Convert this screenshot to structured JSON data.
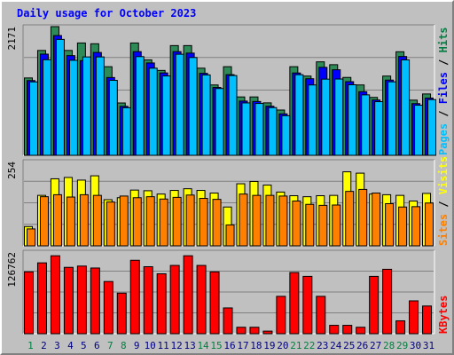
{
  "chart_data": {
    "type": "bar",
    "title": "Daily usage for October 2023",
    "categories": [
      "1",
      "2",
      "3",
      "4",
      "5",
      "6",
      "7",
      "8",
      "9",
      "10",
      "11",
      "12",
      "13",
      "14",
      "15",
      "16",
      "17",
      "18",
      "19",
      "20",
      "21",
      "22",
      "23",
      "24",
      "25",
      "26",
      "27",
      "28",
      "29",
      "30",
      "31"
    ],
    "weekend_days": [
      "1",
      "7",
      "8",
      "14",
      "15",
      "21",
      "22",
      "28",
      "29"
    ],
    "panels": [
      {
        "max_label": "2171",
        "ymax": 2171,
        "legend": [
          {
            "text": "Pages",
            "color": "#00c0ff"
          },
          {
            "text": " / ",
            "color": "#000000"
          },
          {
            "text": "Files",
            "color": "#0000ff"
          },
          {
            "text": " / ",
            "color": "#000000"
          },
          {
            "text": "Hits",
            "color": "#008040"
          }
        ],
        "series": [
          {
            "name": "Hits",
            "color": "#2e8b57",
            "values": [
              1305,
              1769,
              2171,
              1769,
              1895,
              1882,
              1495,
              883,
              1895,
              1610,
              1432,
              1851,
              1851,
              1470,
              1187,
              1495,
              985,
              985,
              885,
              764,
              1495,
              1337,
              1577,
              1529,
              1314,
              1187,
              977,
              1337,
              1747,
              931,
              1035
            ]
          },
          {
            "name": "Files",
            "color": "#0000ff",
            "values": [
              1261,
              1707,
              2020,
              1682,
              1597,
              1735,
              1312,
              826,
              1749,
              1558,
              1390,
              1749,
              1724,
              1383,
              1145,
              1361,
              915,
              908,
              828,
              699,
              1389,
              1292,
              1484,
              1443,
              1242,
              1073,
              933,
              1269,
              1667,
              872,
              966
            ]
          },
          {
            "name": "Pages",
            "color": "#00bfff",
            "values": [
              1239,
              1613,
              1956,
              1603,
              1660,
              1660,
              1265,
              803,
              1665,
              1470,
              1339,
              1705,
              1650,
              1356,
              1127,
              1346,
              884,
              875,
              805,
              668,
              1360,
              1187,
              1285,
              1287,
              1190,
              1020,
              905,
              1240,
              1610,
              845,
              940
            ]
          }
        ]
      },
      {
        "max_label": "254",
        "ymax": 254,
        "legend": [
          {
            "text": "Sites",
            "color": "#ff8000"
          },
          {
            "text": " / ",
            "color": "#000000"
          },
          {
            "text": "Visits",
            "color": "#ffff00"
          }
        ],
        "series": [
          {
            "name": "Visits",
            "color": "#ffff00",
            "values": [
              58,
              152,
              202,
              206,
              198,
              211,
              139,
              145,
              168,
              166,
              156,
              167,
              172,
              167,
              159,
              117,
              187,
              194,
              183,
              162,
              151,
              148,
              151,
              152,
              223,
              219,
              156,
              154,
              152,
              135,
              158
            ]
          },
          {
            "name": "Sites",
            "color": "#ff8000",
            "values": [
              51,
              148,
              154,
              147,
              154,
              152,
              132,
              150,
              145,
              148,
              141,
              146,
              153,
              143,
              140,
              63,
              156,
              152,
              152,
              150,
              135,
              125,
              122,
              123,
              164,
              170,
              159,
              127,
              117,
              118,
              129
            ]
          }
        ]
      },
      {
        "max_label": "126762",
        "ymax": 126762,
        "legend": [
          {
            "text": "KBytes",
            "color": "#ff0000"
          }
        ],
        "series": [
          {
            "name": "KBytes",
            "color": "#ff0000",
            "values": [
              96000,
              110000,
              121000,
              103000,
              105000,
              102000,
              81000,
              63000,
              114000,
              104000,
              93000,
              106000,
              121000,
              106000,
              96000,
              40000,
              10000,
              10000,
              4000,
              58000,
              95000,
              89000,
              58000,
              13000,
              13000,
              10000,
              89000,
              100000,
              20000,
              51000,
              43000
            ]
          }
        ]
      }
    ]
  }
}
